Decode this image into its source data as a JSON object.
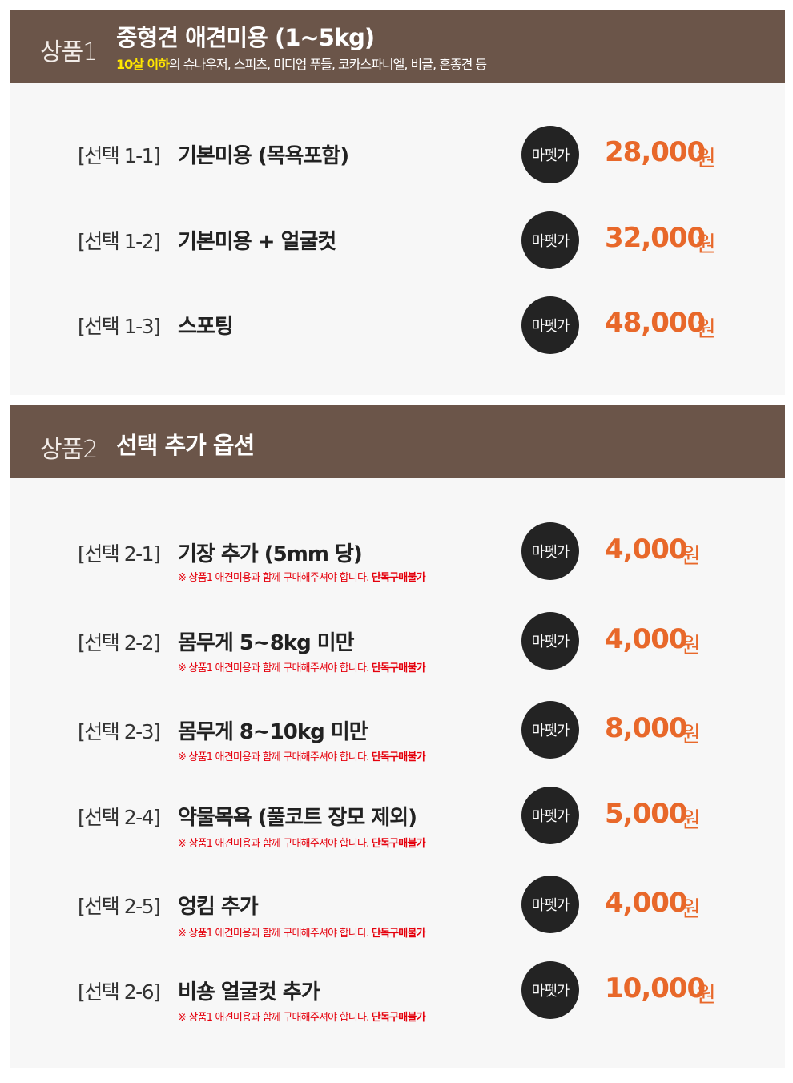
{
  "section1": {
    "label": "상품1",
    "title": "중형견 애견미용 (1~5kg)",
    "subtitle_highlight": "10살 이하",
    "subtitle_rest": "의 슈나우저, 스피츠, 미디엄 푸들, 코카스파니엘, 비글, 혼종견 등",
    "items": [
      {
        "code": "[선택 1-1]",
        "name": "기본미용 (목욕포함)",
        "badge": "마펫가",
        "price": "28,000",
        "unit": "원"
      },
      {
        "code": "[선택 1-2]",
        "name": "기본미용 + 얼굴컷",
        "badge": "마펫가",
        "price": "32,000",
        "unit": "원"
      },
      {
        "code": "[선택 1-3]",
        "name": "스포팅",
        "badge": "마펫가",
        "price": "48,000",
        "unit": "원"
      }
    ]
  },
  "section2": {
    "label": "상품2",
    "title": "선택 추가 옵션",
    "note_text": "※ 상품1 애견미용과 함께 구매해주셔야 합니다. ",
    "note_bold": "단독구매불가",
    "items": [
      {
        "code": "[선택 2-1]",
        "name": "기장 추가 (5mm 당)",
        "badge": "마펫가",
        "price": "4,000",
        "unit": "원"
      },
      {
        "code": "[선택 2-2]",
        "name": "몸무게 5~8kg 미만",
        "badge": "마펫가",
        "price": "4,000",
        "unit": "원"
      },
      {
        "code": "[선택 2-3]",
        "name": "몸무게 8~10kg 미만",
        "badge": "마펫가",
        "price": "8,000",
        "unit": "원"
      },
      {
        "code": "[선택 2-4]",
        "name": "약물목욕 (풀코트 장모 제외)",
        "badge": "마펫가",
        "price": "5,000",
        "unit": "원"
      },
      {
        "code": "[선택 2-5]",
        "name": "엉킴 추가",
        "badge": "마펫가",
        "price": "4,000",
        "unit": "원"
      },
      {
        "code": "[선택 2-6]",
        "name": "비숑 얼굴컷 추가",
        "badge": "마펫가",
        "price": "10,000",
        "unit": "원"
      }
    ]
  },
  "colors": {
    "header_bg": "#6b5549",
    "price": "#e8682a",
    "note": "#e5000c",
    "highlight": "#ffe600",
    "badge_bg": "#232323"
  }
}
